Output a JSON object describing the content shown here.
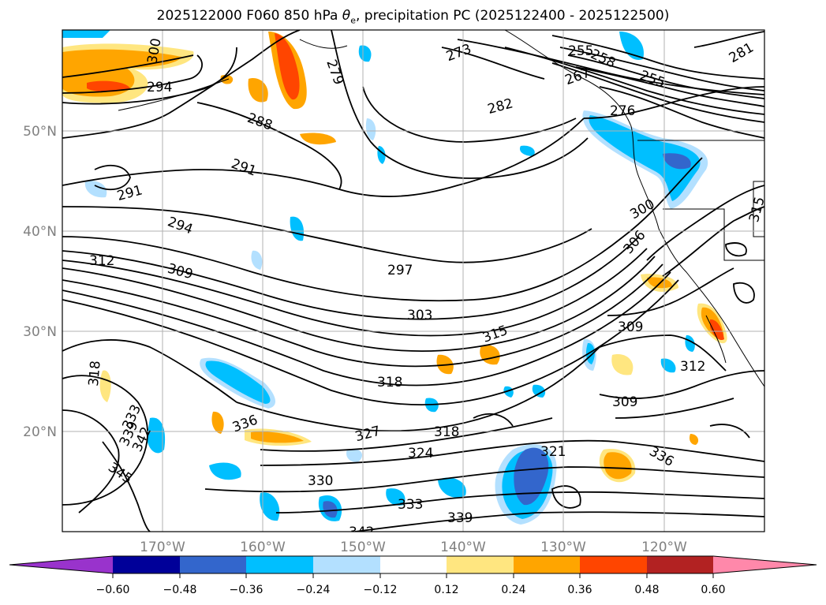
{
  "title": {
    "main": "2025122000 F060 850 hPa ",
    "symbol": "θ",
    "subscript": "e",
    "rest": ", precipitation PC (2025122400 - 2025122500)"
  },
  "axes": {
    "lat_labels": [
      "50°N",
      "40°N",
      "30°N",
      "20°N"
    ],
    "lon_labels": [
      "170°W",
      "160°W",
      "150°W",
      "140°W",
      "130°W",
      "120°W"
    ]
  },
  "contour_labels": [
    "300",
    "294",
    "288",
    "291",
    "291",
    "294",
    "312",
    "309",
    "297",
    "303",
    "315",
    "318",
    "318",
    "336",
    "333",
    "339",
    "342",
    "345",
    "327",
    "324",
    "318",
    "321",
    "330",
    "333",
    "339",
    "342",
    "273",
    "282",
    "279",
    "255",
    "258",
    "255",
    "267",
    "276",
    "281",
    "300",
    "306",
    "315",
    "309",
    "312",
    "309",
    "336"
  ],
  "colorbar": {
    "ticks": [
      "−0.60",
      "−0.48",
      "−0.36",
      "−0.24",
      "−0.12",
      "0.12",
      "0.24",
      "0.36",
      "0.48",
      "0.60"
    ],
    "colors": [
      "#9933cc",
      "#000099",
      "#3366cc",
      "#00bfff",
      "#b3e0ff",
      "#ffffff",
      "#ffe680",
      "#ffa500",
      "#ff4500",
      "#b22222",
      "#ff88aa"
    ]
  }
}
